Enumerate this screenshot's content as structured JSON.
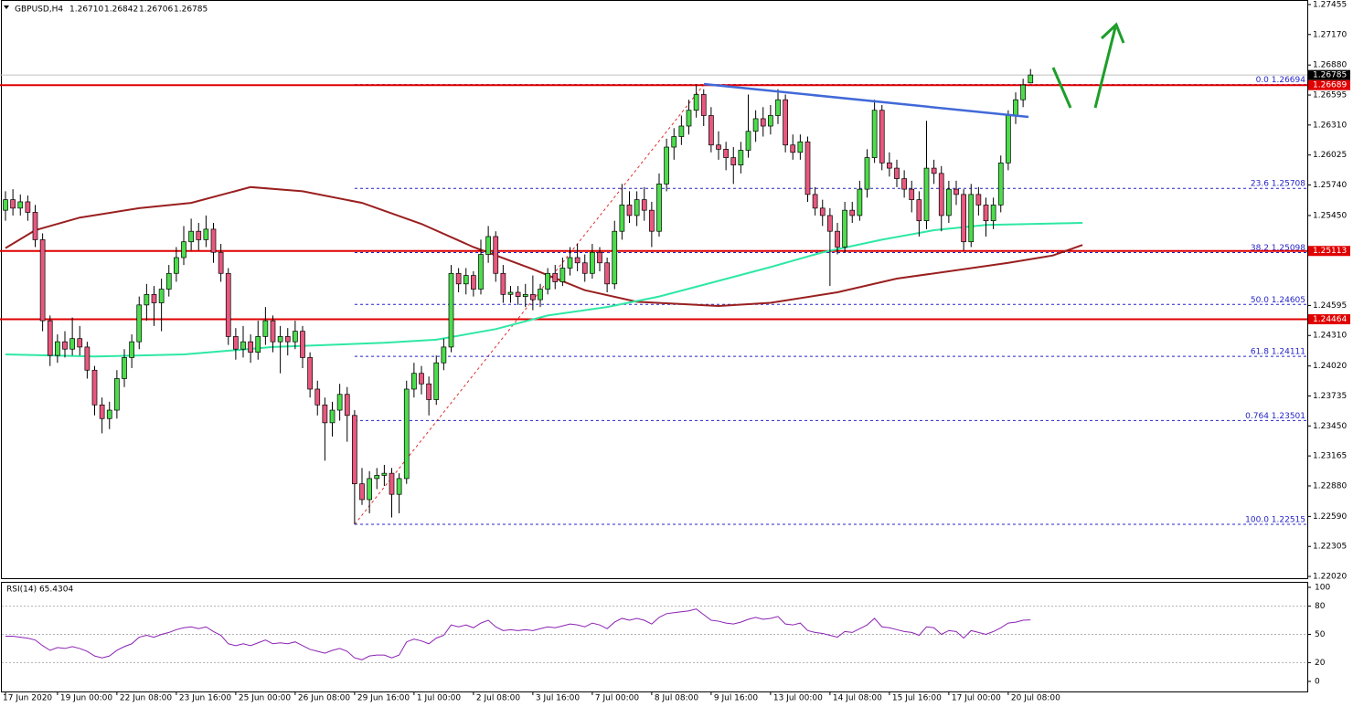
{
  "chart_data": {
    "type": "candlestick",
    "header": {
      "symbol": "GBPUSD,H4",
      "ohlc": [
        "1.26710",
        "1.26842",
        "1.26706",
        "1.26785"
      ]
    },
    "categories": [
      "17 Jun 2020",
      null,
      null,
      null,
      null,
      null,
      null,
      "19 Jun 00:00",
      null,
      null,
      null,
      null,
      null,
      null,
      null,
      "22 Jun 08:00",
      null,
      null,
      null,
      null,
      null,
      null,
      null,
      "23 Jun 16:00",
      null,
      null,
      null,
      null,
      null,
      null,
      null,
      "25 Jun 00:00",
      null,
      null,
      null,
      null,
      null,
      null,
      null,
      "26 Jun 08:00",
      null,
      null,
      null,
      null,
      null,
      null,
      null,
      "29 Jun 16:00",
      null,
      null,
      null,
      null,
      null,
      null,
      null,
      "1 Jul 00:00",
      null,
      null,
      null,
      null,
      null,
      null,
      null,
      "2 Jul 08:00",
      null,
      null,
      null,
      null,
      null,
      null,
      null,
      "3 Jul 16:00",
      null,
      null,
      null,
      null,
      null,
      null,
      null,
      "7 Jul 00:00",
      null,
      null,
      null,
      null,
      null,
      null,
      null,
      "8 Jul 08:00",
      null,
      null,
      null,
      null,
      null,
      null,
      null,
      "9 Jul 16:00",
      null,
      null,
      null,
      null,
      null,
      null,
      null,
      "13 Jul 00:00",
      null,
      null,
      null,
      null,
      null,
      null,
      null,
      "14 Jul 08:00",
      null,
      null,
      null,
      null,
      null,
      null,
      null,
      "15 Jul 16:00",
      null,
      null,
      null,
      null,
      null,
      null,
      null,
      "17 Jul 00:00",
      null,
      null,
      null,
      null,
      null,
      null,
      null,
      "20 Jul 08:00",
      null,
      null,
      null
    ],
    "ohlc": [
      [
        1.255,
        1.2568,
        1.254,
        1.256
      ],
      [
        1.256,
        1.257,
        1.2545,
        1.2552
      ],
      [
        1.2552,
        1.2565,
        1.2545,
        1.2558
      ],
      [
        1.2558,
        1.2564,
        1.254,
        1.2548
      ],
      [
        1.2548,
        1.2555,
        1.2515,
        1.2522
      ],
      [
        1.2522,
        1.2528,
        1.2435,
        1.2445
      ],
      [
        1.2445,
        1.245,
        1.2402,
        1.2412
      ],
      [
        1.2412,
        1.2432,
        1.2405,
        1.2425
      ],
      [
        1.2425,
        1.2435,
        1.241,
        1.2418
      ],
      [
        1.2418,
        1.2448,
        1.2412,
        1.2428
      ],
      [
        1.2428,
        1.244,
        1.2412,
        1.242
      ],
      [
        1.242,
        1.2425,
        1.239,
        1.2398
      ],
      [
        1.2398,
        1.2402,
        1.2355,
        1.2365
      ],
      [
        1.2365,
        1.2372,
        1.2338,
        1.2352
      ],
      [
        1.2352,
        1.2368,
        1.2342,
        1.236
      ],
      [
        1.236,
        1.2398,
        1.2352,
        1.239
      ],
      [
        1.239,
        1.2418,
        1.2382,
        1.241
      ],
      [
        1.241,
        1.2432,
        1.24,
        1.2425
      ],
      [
        1.2425,
        1.2468,
        1.2418,
        1.246
      ],
      [
        1.246,
        1.248,
        1.2445,
        1.247
      ],
      [
        1.247,
        1.2478,
        1.244,
        1.2462
      ],
      [
        1.2462,
        1.2485,
        1.2435,
        1.2475
      ],
      [
        1.2475,
        1.2498,
        1.2468,
        1.249
      ],
      [
        1.249,
        1.2515,
        1.2482,
        1.2505
      ],
      [
        1.2505,
        1.2535,
        1.2498,
        1.252
      ],
      [
        1.252,
        1.2542,
        1.2512,
        1.253
      ],
      [
        1.253,
        1.2538,
        1.2512,
        1.2522
      ],
      [
        1.2522,
        1.2545,
        1.2515,
        1.2532
      ],
      [
        1.2532,
        1.2538,
        1.25,
        1.251
      ],
      [
        1.251,
        1.2518,
        1.2482,
        1.249
      ],
      [
        1.249,
        1.2495,
        1.2422,
        1.243
      ],
      [
        1.243,
        1.2438,
        1.2408,
        1.2418
      ],
      [
        1.2418,
        1.244,
        1.241,
        1.2425
      ],
      [
        1.2425,
        1.2432,
        1.2405,
        1.2415
      ],
      [
        1.2415,
        1.2445,
        1.2408,
        1.243
      ],
      [
        1.243,
        1.2458,
        1.2422,
        1.2445
      ],
      [
        1.2445,
        1.245,
        1.2415,
        1.2425
      ],
      [
        1.2425,
        1.244,
        1.2395,
        1.243
      ],
      [
        1.243,
        1.2438,
        1.2412,
        1.2425
      ],
      [
        1.2425,
        1.2445,
        1.2418,
        1.2435
      ],
      [
        1.2435,
        1.244,
        1.24,
        1.241
      ],
      [
        1.241,
        1.2415,
        1.2372,
        1.238
      ],
      [
        1.238,
        1.2388,
        1.2355,
        1.2365
      ],
      [
        1.2365,
        1.2372,
        1.2312,
        1.2348
      ],
      [
        1.2348,
        1.2368,
        1.2335,
        1.236
      ],
      [
        1.236,
        1.2385,
        1.235,
        1.2375
      ],
      [
        1.2375,
        1.2382,
        1.233,
        1.2355
      ],
      [
        1.2355,
        1.236,
        1.22515,
        1.229
      ],
      [
        1.229,
        1.2305,
        1.227,
        1.2275
      ],
      [
        1.2275,
        1.2302,
        1.2262,
        1.2295
      ],
      [
        1.2295,
        1.2305,
        1.2285,
        1.2298
      ],
      [
        1.2298,
        1.2308,
        1.2288,
        1.23
      ],
      [
        1.23,
        1.2305,
        1.2258,
        1.228
      ],
      [
        1.228,
        1.23,
        1.2262,
        1.2295
      ],
      [
        1.2295,
        1.2388,
        1.229,
        1.238
      ],
      [
        1.238,
        1.2405,
        1.2372,
        1.2395
      ],
      [
        1.2395,
        1.2402,
        1.2375,
        1.2385
      ],
      [
        1.2385,
        1.2392,
        1.2355,
        1.237
      ],
      [
        1.237,
        1.2412,
        1.2365,
        1.2405
      ],
      [
        1.2405,
        1.2428,
        1.2398,
        1.242
      ],
      [
        1.242,
        1.2498,
        1.2415,
        1.249
      ],
      [
        1.249,
        1.2495,
        1.2472,
        1.248
      ],
      [
        1.248,
        1.2495,
        1.247,
        1.2488
      ],
      [
        1.2488,
        1.2492,
        1.2468,
        1.2475
      ],
      [
        1.2475,
        1.2522,
        1.247,
        1.2508
      ],
      [
        1.2508,
        1.2535,
        1.25,
        1.2525
      ],
      [
        1.2525,
        1.253,
        1.2482,
        1.249
      ],
      [
        1.249,
        1.2498,
        1.2462,
        1.247
      ],
      [
        1.247,
        1.2478,
        1.2462,
        1.2472
      ],
      [
        1.2472,
        1.2478,
        1.246,
        1.2468
      ],
      [
        1.2468,
        1.248,
        1.2458,
        1.247
      ],
      [
        1.247,
        1.2488,
        1.2455,
        1.2465
      ],
      [
        1.2465,
        1.248,
        1.2458,
        1.2475
      ],
      [
        1.2475,
        1.2495,
        1.247,
        1.249
      ],
      [
        1.249,
        1.2498,
        1.2475,
        1.2482
      ],
      [
        1.2482,
        1.2505,
        1.2478,
        1.2495
      ],
      [
        1.2495,
        1.2515,
        1.2488,
        1.2505
      ],
      [
        1.2505,
        1.2518,
        1.2492,
        1.25
      ],
      [
        1.25,
        1.2508,
        1.2482,
        1.249
      ],
      [
        1.249,
        1.2518,
        1.2485,
        1.251
      ],
      [
        1.251,
        1.2515,
        1.2492,
        1.25
      ],
      [
        1.25,
        1.2505,
        1.2472,
        1.248
      ],
      [
        1.248,
        1.254,
        1.2475,
        1.253
      ],
      [
        1.253,
        1.2575,
        1.2522,
        1.2555
      ],
      [
        1.2555,
        1.2568,
        1.2538,
        1.2545
      ],
      [
        1.2545,
        1.2568,
        1.2535,
        1.256
      ],
      [
        1.256,
        1.2572,
        1.254,
        1.255
      ],
      [
        1.255,
        1.2558,
        1.2515,
        1.253
      ],
      [
        1.253,
        1.2585,
        1.2525,
        1.2575
      ],
      [
        1.2575,
        1.2618,
        1.2568,
        1.261
      ],
      [
        1.261,
        1.2628,
        1.2598,
        1.262
      ],
      [
        1.262,
        1.264,
        1.2612,
        1.263
      ],
      [
        1.263,
        1.2655,
        1.2622,
        1.2645
      ],
      [
        1.2645,
        1.26694,
        1.2638,
        1.266
      ],
      [
        1.266,
        1.2665,
        1.263,
        1.264
      ],
      [
        1.264,
        1.2648,
        1.2605,
        1.2612
      ],
      [
        1.2612,
        1.2625,
        1.2598,
        1.2608
      ],
      [
        1.2608,
        1.2615,
        1.2588,
        1.26
      ],
      [
        1.26,
        1.261,
        1.2575,
        1.2593
      ],
      [
        1.2593,
        1.2615,
        1.2585,
        1.2607
      ],
      [
        1.2607,
        1.266,
        1.26,
        1.2625
      ],
      [
        1.2625,
        1.2645,
        1.2615,
        1.2637
      ],
      [
        1.2637,
        1.2648,
        1.262,
        1.263
      ],
      [
        1.263,
        1.265,
        1.2622,
        1.264
      ],
      [
        1.264,
        1.2665,
        1.2632,
        1.2655
      ],
      [
        1.2655,
        1.266,
        1.2605,
        1.2612
      ],
      [
        1.2612,
        1.2622,
        1.2598,
        1.2605
      ],
      [
        1.2605,
        1.2622,
        1.2598,
        1.2615
      ],
      [
        1.2615,
        1.262,
        1.2558,
        1.2565
      ],
      [
        1.2565,
        1.2572,
        1.2545,
        1.2552
      ],
      [
        1.2552,
        1.256,
        1.2535,
        1.2545
      ],
      [
        1.2545,
        1.2552,
        1.2478,
        1.253
      ],
      [
        1.253,
        1.2538,
        1.2508,
        1.2515
      ],
      [
        1.2515,
        1.2558,
        1.251,
        1.255
      ],
      [
        1.255,
        1.2558,
        1.2538,
        1.2545
      ],
      [
        1.2545,
        1.2578,
        1.254,
        1.257
      ],
      [
        1.257,
        1.2608,
        1.2562,
        1.26
      ],
      [
        1.26,
        1.2655,
        1.2595,
        1.2645
      ],
      [
        1.2645,
        1.265,
        1.2588,
        1.2595
      ],
      [
        1.2595,
        1.2605,
        1.2582,
        1.259
      ],
      [
        1.259,
        1.2598,
        1.2572,
        1.258
      ],
      [
        1.258,
        1.2588,
        1.2562,
        1.257
      ],
      [
        1.257,
        1.2578,
        1.2548,
        1.256
      ],
      [
        1.256,
        1.2568,
        1.2525,
        1.254
      ],
      [
        1.254,
        1.2635,
        1.2532,
        1.259
      ],
      [
        1.259,
        1.2598,
        1.2575,
        1.2585
      ],
      [
        1.2585,
        1.2592,
        1.253,
        1.2545
      ],
      [
        1.2545,
        1.2578,
        1.2538,
        1.257
      ],
      [
        1.257,
        1.2578,
        1.2555,
        1.2565
      ],
      [
        1.2565,
        1.257,
        1.2512,
        1.252
      ],
      [
        1.252,
        1.2575,
        1.2515,
        1.2565
      ],
      [
        1.2565,
        1.2572,
        1.2545,
        1.2555
      ],
      [
        1.2555,
        1.2562,
        1.2525,
        1.254
      ],
      [
        1.254,
        1.2562,
        1.2532,
        1.2555
      ],
      [
        1.2555,
        1.2602,
        1.2548,
        1.2595
      ],
      [
        1.2595,
        1.2645,
        1.2588,
        1.264
      ],
      [
        1.264,
        1.2662,
        1.2632,
        1.2655
      ],
      [
        1.2655,
        1.2675,
        1.2648,
        1.2669
      ],
      [
        1.2671,
        1.26842,
        1.26706,
        1.26785
      ]
    ],
    "up_color": "#4cdc4c",
    "down_color": "#e8587e",
    "ylim": [
      1.22003,
      1.27498
    ],
    "yticks": [
      {
        "value": 1.27455,
        "label": "1.27455"
      },
      {
        "value": 1.2717,
        "label": "1.27170"
      },
      {
        "value": 1.2688,
        "label": "1.26880"
      },
      {
        "value": 1.26595,
        "label": "1.26595"
      },
      {
        "value": 1.2631,
        "label": "1.26310"
      },
      {
        "value": 1.26025,
        "label": "1.26025"
      },
      {
        "value": 1.2574,
        "label": "1.25740"
      },
      {
        "value": 1.2545,
        "label": "1.25450"
      },
      {
        "value": 1.24595,
        "label": "1.24595"
      },
      {
        "value": 1.2431,
        "label": "1.24310"
      },
      {
        "value": 1.2402,
        "label": "1.24020"
      },
      {
        "value": 1.23735,
        "label": "1.23735"
      },
      {
        "value": 1.2345,
        "label": "1.23450"
      },
      {
        "value": 1.23165,
        "label": "1.23165"
      },
      {
        "value": 1.2288,
        "label": "1.22880"
      },
      {
        "value": 1.2259,
        "label": "1.22590"
      },
      {
        "value": 1.22305,
        "label": "1.22305"
      },
      {
        "value": 1.2202,
        "label": "1.22020"
      }
    ],
    "current_price": {
      "value": 1.26785,
      "label": "1.26785"
    },
    "levels": [
      {
        "value": 1.26689,
        "label": "1.26689"
      },
      {
        "value": 1.25113,
        "label": "1.25113"
      },
      {
        "value": 1.24464,
        "label": "1.24464"
      }
    ],
    "level_color": "#e00000",
    "fibonacci": [
      {
        "value": 1.26694,
        "label": "0.0 1.26694"
      },
      {
        "value": 1.25708,
        "label": "23.6 1.25708"
      },
      {
        "value": 1.25098,
        "label": "38.2 1.25098"
      },
      {
        "value": 1.24605,
        "label": "50.0 1.24605"
      },
      {
        "value": 1.24111,
        "label": "61.8 1.24111"
      },
      {
        "value": 1.23501,
        "label": "0.764 1.23501"
      },
      {
        "value": 1.22515,
        "label": "100.0 1.22515"
      }
    ],
    "fib_color": "#2424c8",
    "moving_averages": [
      {
        "color": "#9a1f1f",
        "x": [
          0,
          4,
          10,
          18,
          25,
          33,
          40,
          48,
          56,
          63,
          71,
          78,
          85,
          96,
          103,
          112,
          120,
          128,
          135,
          141,
          145
        ],
        "values": [
          1.2514,
          1.2531,
          1.2543,
          1.2552,
          1.2557,
          1.2572,
          1.2568,
          1.2557,
          1.2537,
          1.2515,
          1.2494,
          1.2474,
          1.2463,
          1.2459,
          1.2462,
          1.2472,
          1.2485,
          1.2493,
          1.25,
          1.2507,
          1.2517
        ]
      },
      {
        "color": "#2ee8a4",
        "x": [
          0,
          12,
          24,
          36,
          51,
          58,
          66,
          73,
          81,
          88,
          95,
          103,
          110,
          118,
          125,
          132,
          145
        ],
        "values": [
          1.2413,
          1.2411,
          1.2413,
          1.242,
          1.2424,
          1.2427,
          1.2437,
          1.245,
          1.2458,
          1.2468,
          1.2481,
          1.2496,
          1.251,
          1.2522,
          1.2531,
          1.2536,
          1.2538
        ]
      }
    ],
    "rsi": {
      "title": "RSI(14) 65.4304",
      "color": "#8c22b4",
      "ylim": [
        -10.7,
        105.8
      ],
      "yticks": [
        100,
        80,
        50,
        20,
        0
      ],
      "values": [
        48,
        48,
        47,
        46,
        44,
        38,
        33,
        36,
        35,
        37,
        35,
        32,
        27,
        25,
        27,
        33,
        37,
        40,
        47,
        49,
        47,
        50,
        52,
        55,
        57,
        58,
        56,
        58,
        53,
        49,
        40,
        38,
        40,
        38,
        41,
        44,
        40,
        41,
        40,
        42,
        38,
        34,
        32,
        30,
        33,
        35,
        32,
        25,
        23,
        27,
        28,
        28,
        25,
        28,
        42,
        45,
        43,
        40,
        46,
        49,
        60,
        58,
        60,
        57,
        62,
        65,
        58,
        54,
        55,
        54,
        55,
        54,
        56,
        58,
        57,
        59,
        61,
        60,
        58,
        62,
        60,
        56,
        63,
        67,
        65,
        67,
        65,
        61,
        68,
        72,
        73,
        74,
        75,
        77,
        71,
        65,
        64,
        62,
        61,
        63,
        66,
        68,
        66,
        67,
        69,
        61,
        60,
        62,
        54,
        52,
        51,
        49,
        47,
        53,
        52,
        56,
        60,
        67,
        58,
        57,
        55,
        53,
        52,
        49,
        58,
        57,
        50,
        54,
        53,
        46,
        54,
        52,
        50,
        53,
        57,
        62,
        63,
        65,
        65.4304
      ]
    }
  }
}
